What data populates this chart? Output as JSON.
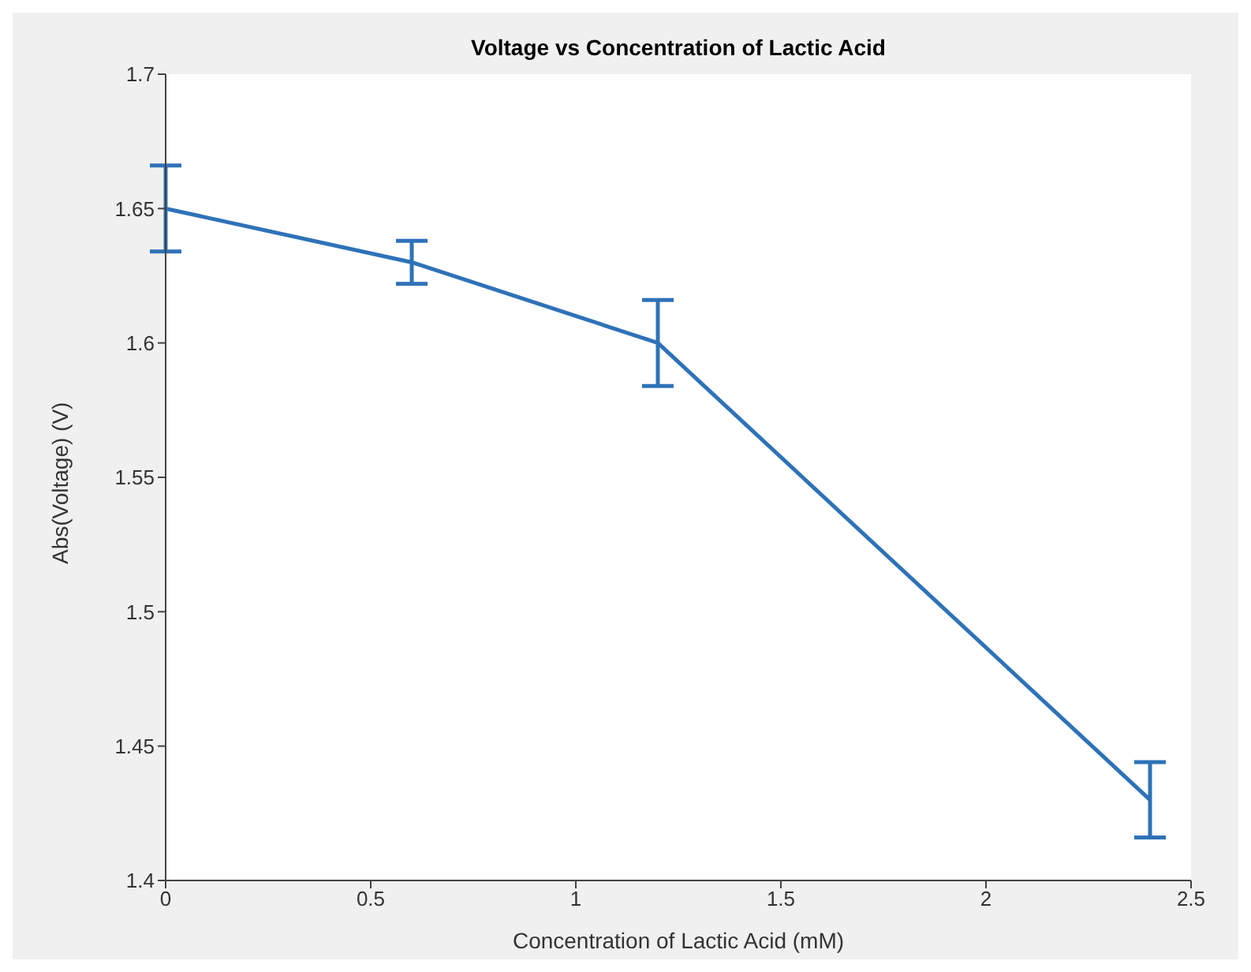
{
  "chart_data": {
    "type": "line",
    "title": "Voltage vs Concentration of Lactic Acid",
    "xlabel": "Concentration of Lactic Acid (mM)",
    "ylabel": "Abs(Voltage) (V)",
    "x": [
      0,
      0.6,
      1.2,
      2.4
    ],
    "series": [
      {
        "color": "#2e72b8",
        "values": [
          1.65,
          1.63,
          1.6,
          1.43
        ],
        "errors": [
          0.016,
          0.008,
          0.016,
          0.014
        ]
      }
    ],
    "xlim": [
      0,
      2.5
    ],
    "xticks": [
      0,
      0.5,
      1,
      1.5,
      2,
      2.5
    ],
    "ylim": [
      1.4,
      1.7
    ],
    "yticks": [
      1.4,
      1.45,
      1.5,
      1.55,
      1.6,
      1.65,
      1.7
    ],
    "grid": false,
    "legend": false,
    "marker": "none",
    "line_style": "solid"
  }
}
